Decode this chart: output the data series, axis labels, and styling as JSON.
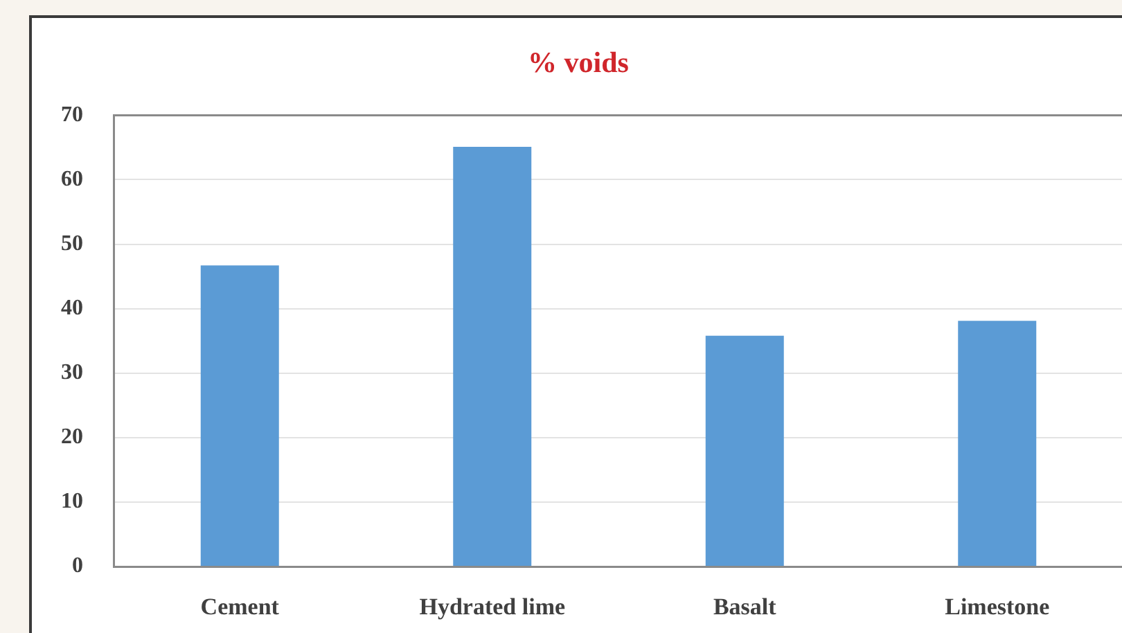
{
  "chart_data": {
    "type": "bar",
    "title": "% voids",
    "categories": [
      "Cement",
      "Hydrated lime",
      "Basalt",
      "Limestone"
    ],
    "values": [
      46.7,
      65.1,
      35.8,
      38.1
    ],
    "color": "#5b9bd5",
    "ylim": [
      0,
      70
    ],
    "yticks": [
      0,
      10,
      20,
      30,
      40,
      50,
      60,
      70
    ],
    "grid": "y"
  }
}
